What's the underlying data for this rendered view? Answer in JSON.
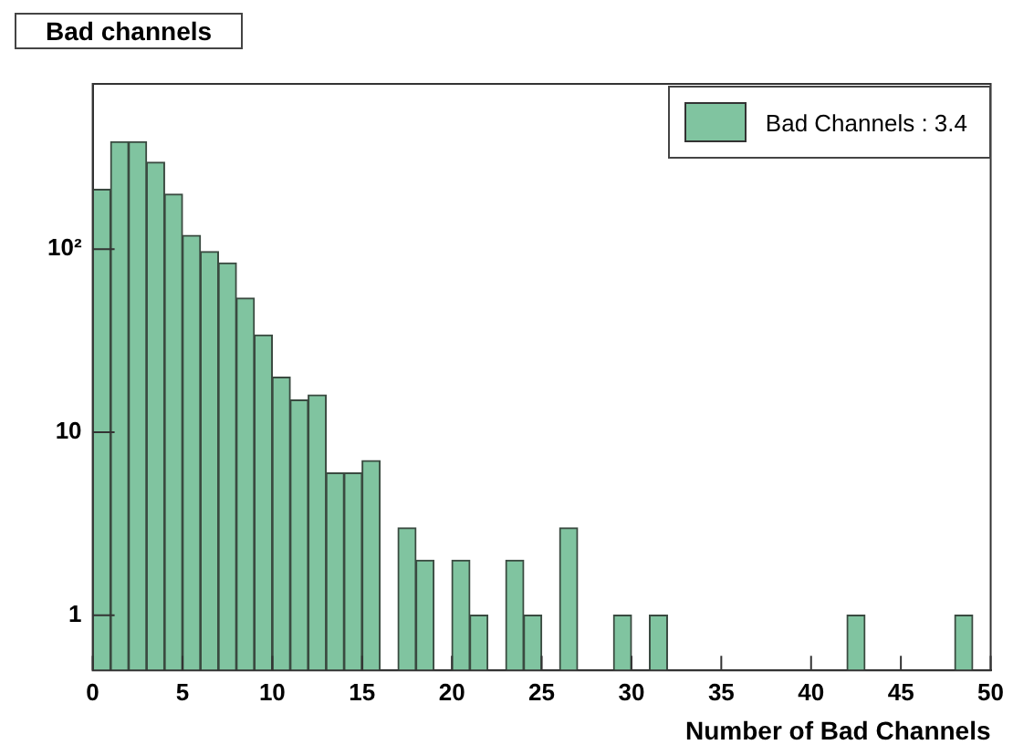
{
  "chart_data": {
    "type": "histogram",
    "title": "Bad channels",
    "xlabel": "Number of Bad Channels",
    "bins": [
      0,
      1,
      2,
      3,
      4,
      5,
      6,
      7,
      8,
      9,
      10,
      11,
      12,
      13,
      14,
      15,
      16,
      17,
      18,
      19,
      20,
      21,
      22,
      23,
      24,
      25,
      26,
      27,
      28,
      29,
      30,
      31,
      32,
      33,
      34,
      35,
      36,
      37,
      38,
      39,
      40,
      41,
      42,
      43,
      44,
      45,
      46,
      47,
      48,
      49,
      50
    ],
    "series": [
      {
        "name": "Bad Channels :  3.4",
        "color": "#80c4a0",
        "values": [
          212,
          387,
          387,
          299,
          200,
          119,
          97,
          84,
          54,
          34,
          20,
          15,
          16,
          6,
          6,
          7,
          null,
          3,
          2,
          null,
          2,
          1,
          null,
          2,
          1,
          null,
          3,
          null,
          null,
          1,
          null,
          1,
          null,
          null,
          null,
          null,
          null,
          null,
          null,
          null,
          null,
          null,
          1,
          null,
          null,
          null,
          null,
          null,
          1,
          null
        ]
      }
    ],
    "xlim": [
      0,
      50
    ],
    "xticks": [
      0,
      5,
      10,
      15,
      20,
      25,
      30,
      35,
      40,
      45,
      50
    ],
    "ylim": [
      0.5,
      800
    ],
    "yticks": [
      1,
      10,
      {
        "value": 100,
        "label": "10²"
      }
    ],
    "log": "y",
    "grid": false,
    "legend": "top right"
  }
}
